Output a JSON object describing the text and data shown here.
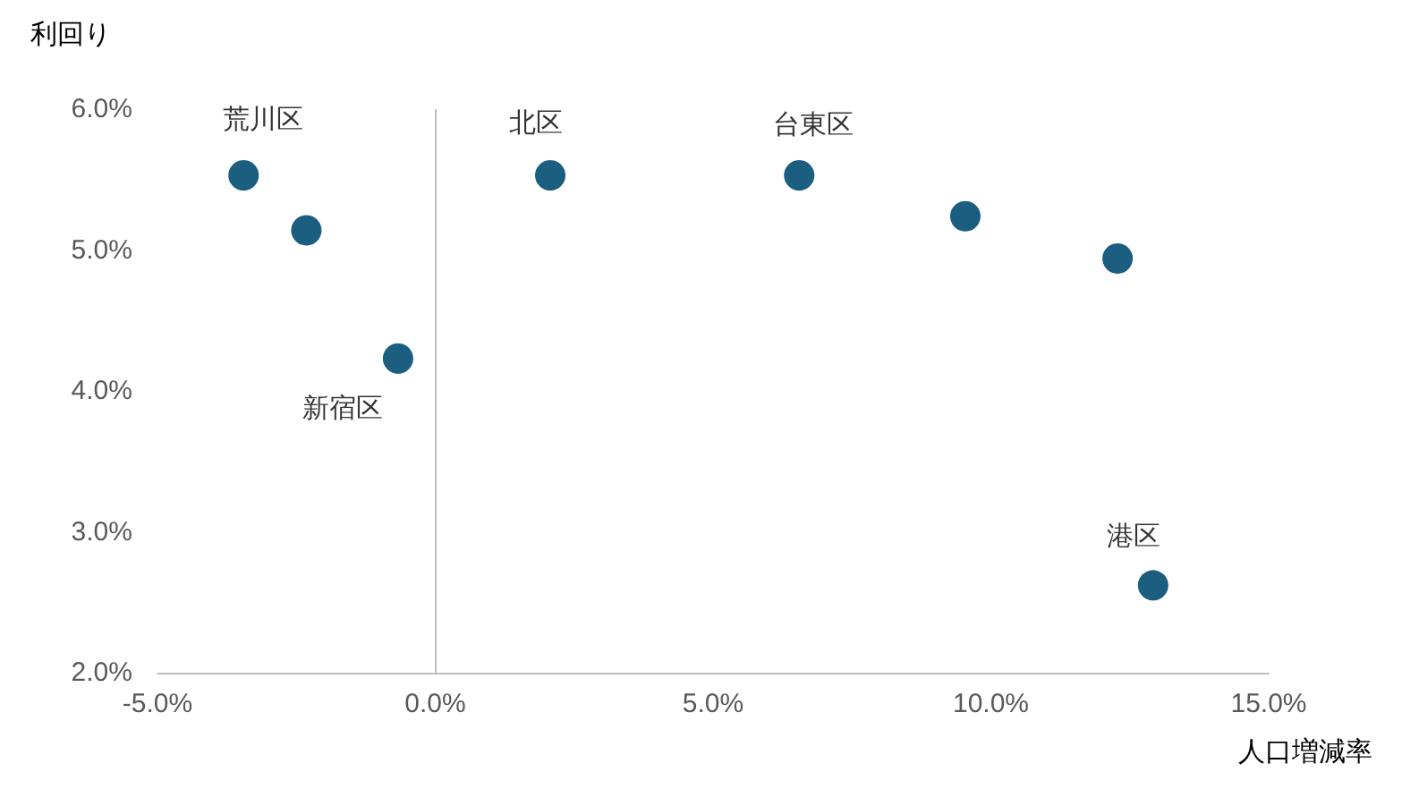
{
  "chart_data": {
    "type": "scatter",
    "xlabel": "人口増減率",
    "ylabel": "利回り",
    "x": [
      -3.45,
      -2.32,
      -0.67,
      2.07,
      6.55,
      9.54,
      12.28,
      12.92
    ],
    "values": [
      5.53,
      5.14,
      4.23,
      5.53,
      5.53,
      5.24,
      4.94,
      2.62
    ],
    "color": "#1b5e80",
    "marker": "circle",
    "xlim": [
      -5,
      15
    ],
    "xticks": [
      {
        "value": -5,
        "label": "-5.0%"
      },
      {
        "value": 0,
        "label": "0.0%"
      },
      {
        "value": 5,
        "label": "5.0%"
      },
      {
        "value": 10,
        "label": "10.0%"
      },
      {
        "value": 15,
        "label": "15.0%"
      }
    ],
    "ylim": [
      2,
      6
    ],
    "yticks": [
      {
        "value": 2,
        "label": "2.0%"
      },
      {
        "value": 3,
        "label": "3.0%"
      },
      {
        "value": 4,
        "label": "4.0%"
      },
      {
        "value": 5,
        "label": "5.0%"
      },
      {
        "value": 6,
        "label": "6.0%"
      }
    ],
    "grid": false,
    "ref_lines": [
      {
        "axis": "x",
        "value": 0,
        "color": "#bfbfbf"
      }
    ],
    "annotations": [
      {
        "text": "荒川区",
        "x": -3.45,
        "y": 5.53
      },
      {
        "text": "新宿区",
        "x": -0.67,
        "y": 4.23
      },
      {
        "text": "北区",
        "x": 2.07,
        "y": 5.53
      },
      {
        "text": "台東区",
        "x": 6.55,
        "y": 5.53
      },
      {
        "text": "港区",
        "x": 12.92,
        "y": 2.62
      }
    ]
  }
}
